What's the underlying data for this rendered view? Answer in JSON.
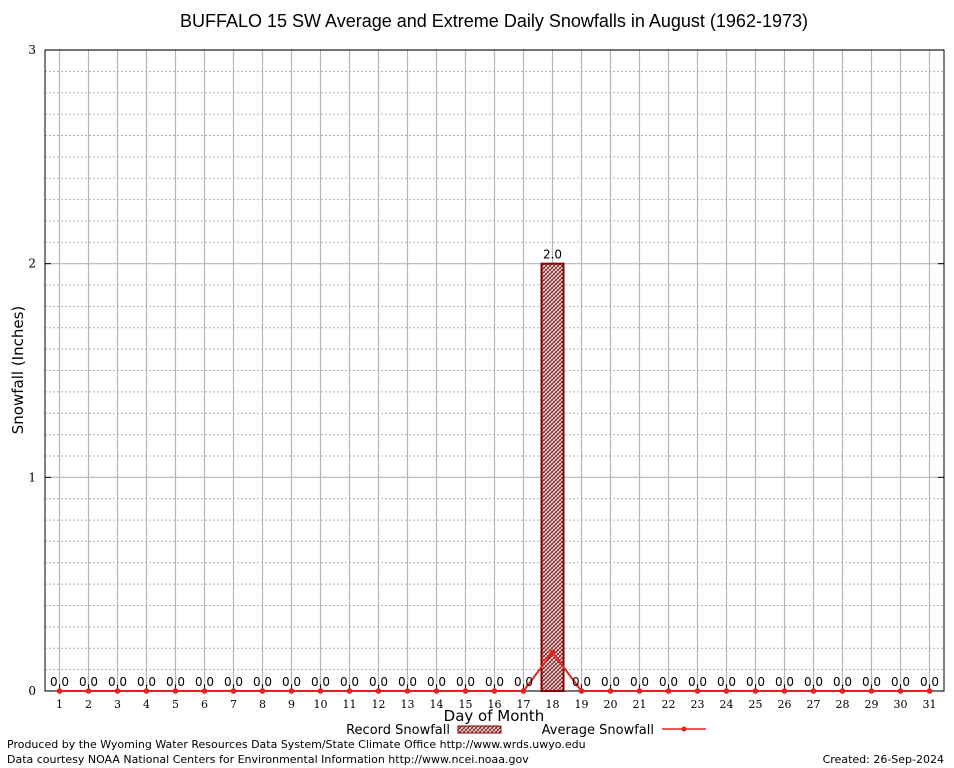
{
  "chart_data": {
    "type": "bar",
    "title": "BUFFALO 15 SW Average and Extreme Daily Snowfalls in August (1962-1973)",
    "xlabel": "Day of Month",
    "ylabel": "Snowfall (Inches)",
    "ylim": [
      0,
      3
    ],
    "yticks": [
      "0",
      "1",
      "2",
      "3"
    ],
    "categories": [
      "1",
      "2",
      "3",
      "4",
      "5",
      "6",
      "7",
      "8",
      "9",
      "10",
      "11",
      "12",
      "13",
      "14",
      "15",
      "16",
      "17",
      "18",
      "19",
      "20",
      "21",
      "22",
      "23",
      "24",
      "25",
      "26",
      "27",
      "28",
      "29",
      "30",
      "31"
    ],
    "series": [
      {
        "name": "Record Snowfall",
        "type": "bar",
        "values": [
          0,
          0,
          0,
          0,
          0,
          0,
          0,
          0,
          0,
          0,
          0,
          0,
          0,
          0,
          0,
          0,
          0,
          2.0,
          0,
          0,
          0,
          0,
          0,
          0,
          0,
          0,
          0,
          0,
          0,
          0,
          0
        ],
        "data_labels": [
          "0.0",
          "0.0",
          "0.0",
          "0.0",
          "0.0",
          "0.0",
          "0.0",
          "0.0",
          "0.0",
          "0.0",
          "0.0",
          "0.0",
          "0.0",
          "0.0",
          "0.0",
          "0.0",
          "0.0",
          "2.0",
          "0.0",
          "0.0",
          "0.0",
          "0.0",
          "0.0",
          "0.0",
          "0.0",
          "0.0",
          "0.0",
          "0.0",
          "0.0",
          "0.0",
          "0.0"
        ],
        "color": "#8b0000"
      },
      {
        "name": "Average Snowfall",
        "type": "line",
        "values": [
          0,
          0,
          0,
          0,
          0,
          0,
          0,
          0,
          0,
          0,
          0,
          0,
          0,
          0,
          0,
          0,
          0,
          0.18,
          0,
          0,
          0,
          0,
          0,
          0,
          0,
          0,
          0,
          0,
          0,
          0,
          0
        ],
        "color": "#e8211e"
      }
    ],
    "grid": true,
    "legend": "bottom-center"
  },
  "footer": {
    "produced_by": "Produced by the Wyoming Water Resources Data System/State Climate Office http://www.wrds.uwyo.edu",
    "data_courtesy": "Data courtesy NOAA National Centers for Environmental Information http://www.ncei.noaa.gov",
    "created": "Created: 26-Sep-2024"
  }
}
